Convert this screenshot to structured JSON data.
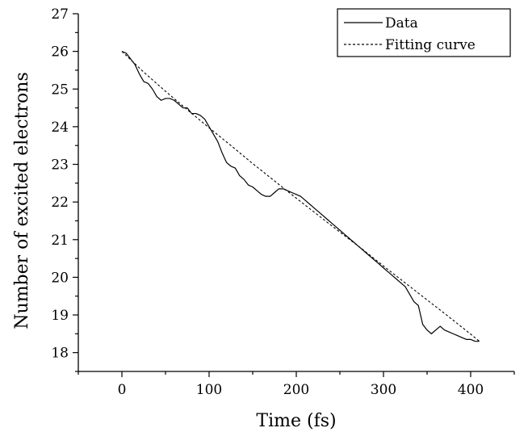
{
  "chart_data": {
    "type": "line",
    "title": "",
    "xlabel": "Time (fs)",
    "ylabel": "Number of excited electrons",
    "xlim": [
      -50,
      450
    ],
    "ylim": [
      17.5,
      27
    ],
    "xticks": [
      0,
      100,
      200,
      300,
      400
    ],
    "yticks": [
      18,
      19,
      20,
      21,
      22,
      23,
      24,
      25,
      26,
      27
    ],
    "grid": false,
    "legend_position": "top-right",
    "series": [
      {
        "name": "Data",
        "style": "solid",
        "color": "#000000",
        "x": [
          0,
          5,
          10,
          15,
          20,
          25,
          30,
          35,
          40,
          45,
          50,
          55,
          60,
          65,
          70,
          75,
          80,
          85,
          90,
          95,
          100,
          105,
          110,
          115,
          120,
          125,
          130,
          135,
          140,
          145,
          150,
          155,
          160,
          165,
          170,
          175,
          180,
          185,
          190,
          195,
          200,
          205,
          210,
          215,
          220,
          225,
          230,
          235,
          240,
          245,
          250,
          255,
          260,
          265,
          270,
          275,
          280,
          285,
          290,
          295,
          300,
          305,
          310,
          315,
          320,
          325,
          330,
          335,
          340,
          345,
          350,
          355,
          360,
          365,
          370,
          375,
          380,
          385,
          390,
          395,
          400,
          405,
          410
        ],
        "y": [
          26.0,
          25.95,
          25.8,
          25.65,
          25.4,
          25.2,
          25.15,
          25.0,
          24.8,
          24.7,
          24.75,
          24.75,
          24.7,
          24.6,
          24.5,
          24.5,
          24.35,
          24.35,
          24.3,
          24.2,
          24.0,
          23.8,
          23.6,
          23.3,
          23.05,
          22.95,
          22.9,
          22.7,
          22.6,
          22.45,
          22.4,
          22.3,
          22.2,
          22.15,
          22.15,
          22.25,
          22.35,
          22.35,
          22.3,
          22.25,
          22.2,
          22.15,
          22.05,
          21.95,
          21.85,
          21.75,
          21.65,
          21.55,
          21.45,
          21.35,
          21.25,
          21.15,
          21.05,
          20.95,
          20.85,
          20.75,
          20.65,
          20.55,
          20.45,
          20.35,
          20.25,
          20.15,
          20.05,
          19.95,
          19.85,
          19.75,
          19.55,
          19.35,
          19.25,
          18.75,
          18.6,
          18.5,
          18.6,
          18.7,
          18.6,
          18.55,
          18.5,
          18.45,
          18.4,
          18.35,
          18.35,
          18.3,
          18.3
        ]
      },
      {
        "name": "Fitting curve",
        "style": "dashed",
        "color": "#000000",
        "x": [
          0,
          25,
          50,
          75,
          100,
          125,
          150,
          175,
          200,
          225,
          250,
          275,
          300,
          325,
          350,
          375,
          400,
          410
        ],
        "y": [
          26.0,
          25.45,
          24.94,
          24.45,
          23.97,
          23.5,
          23.02,
          22.56,
          22.1,
          21.65,
          21.2,
          20.76,
          20.3,
          19.85,
          19.4,
          18.95,
          18.49,
          18.3
        ]
      }
    ]
  }
}
